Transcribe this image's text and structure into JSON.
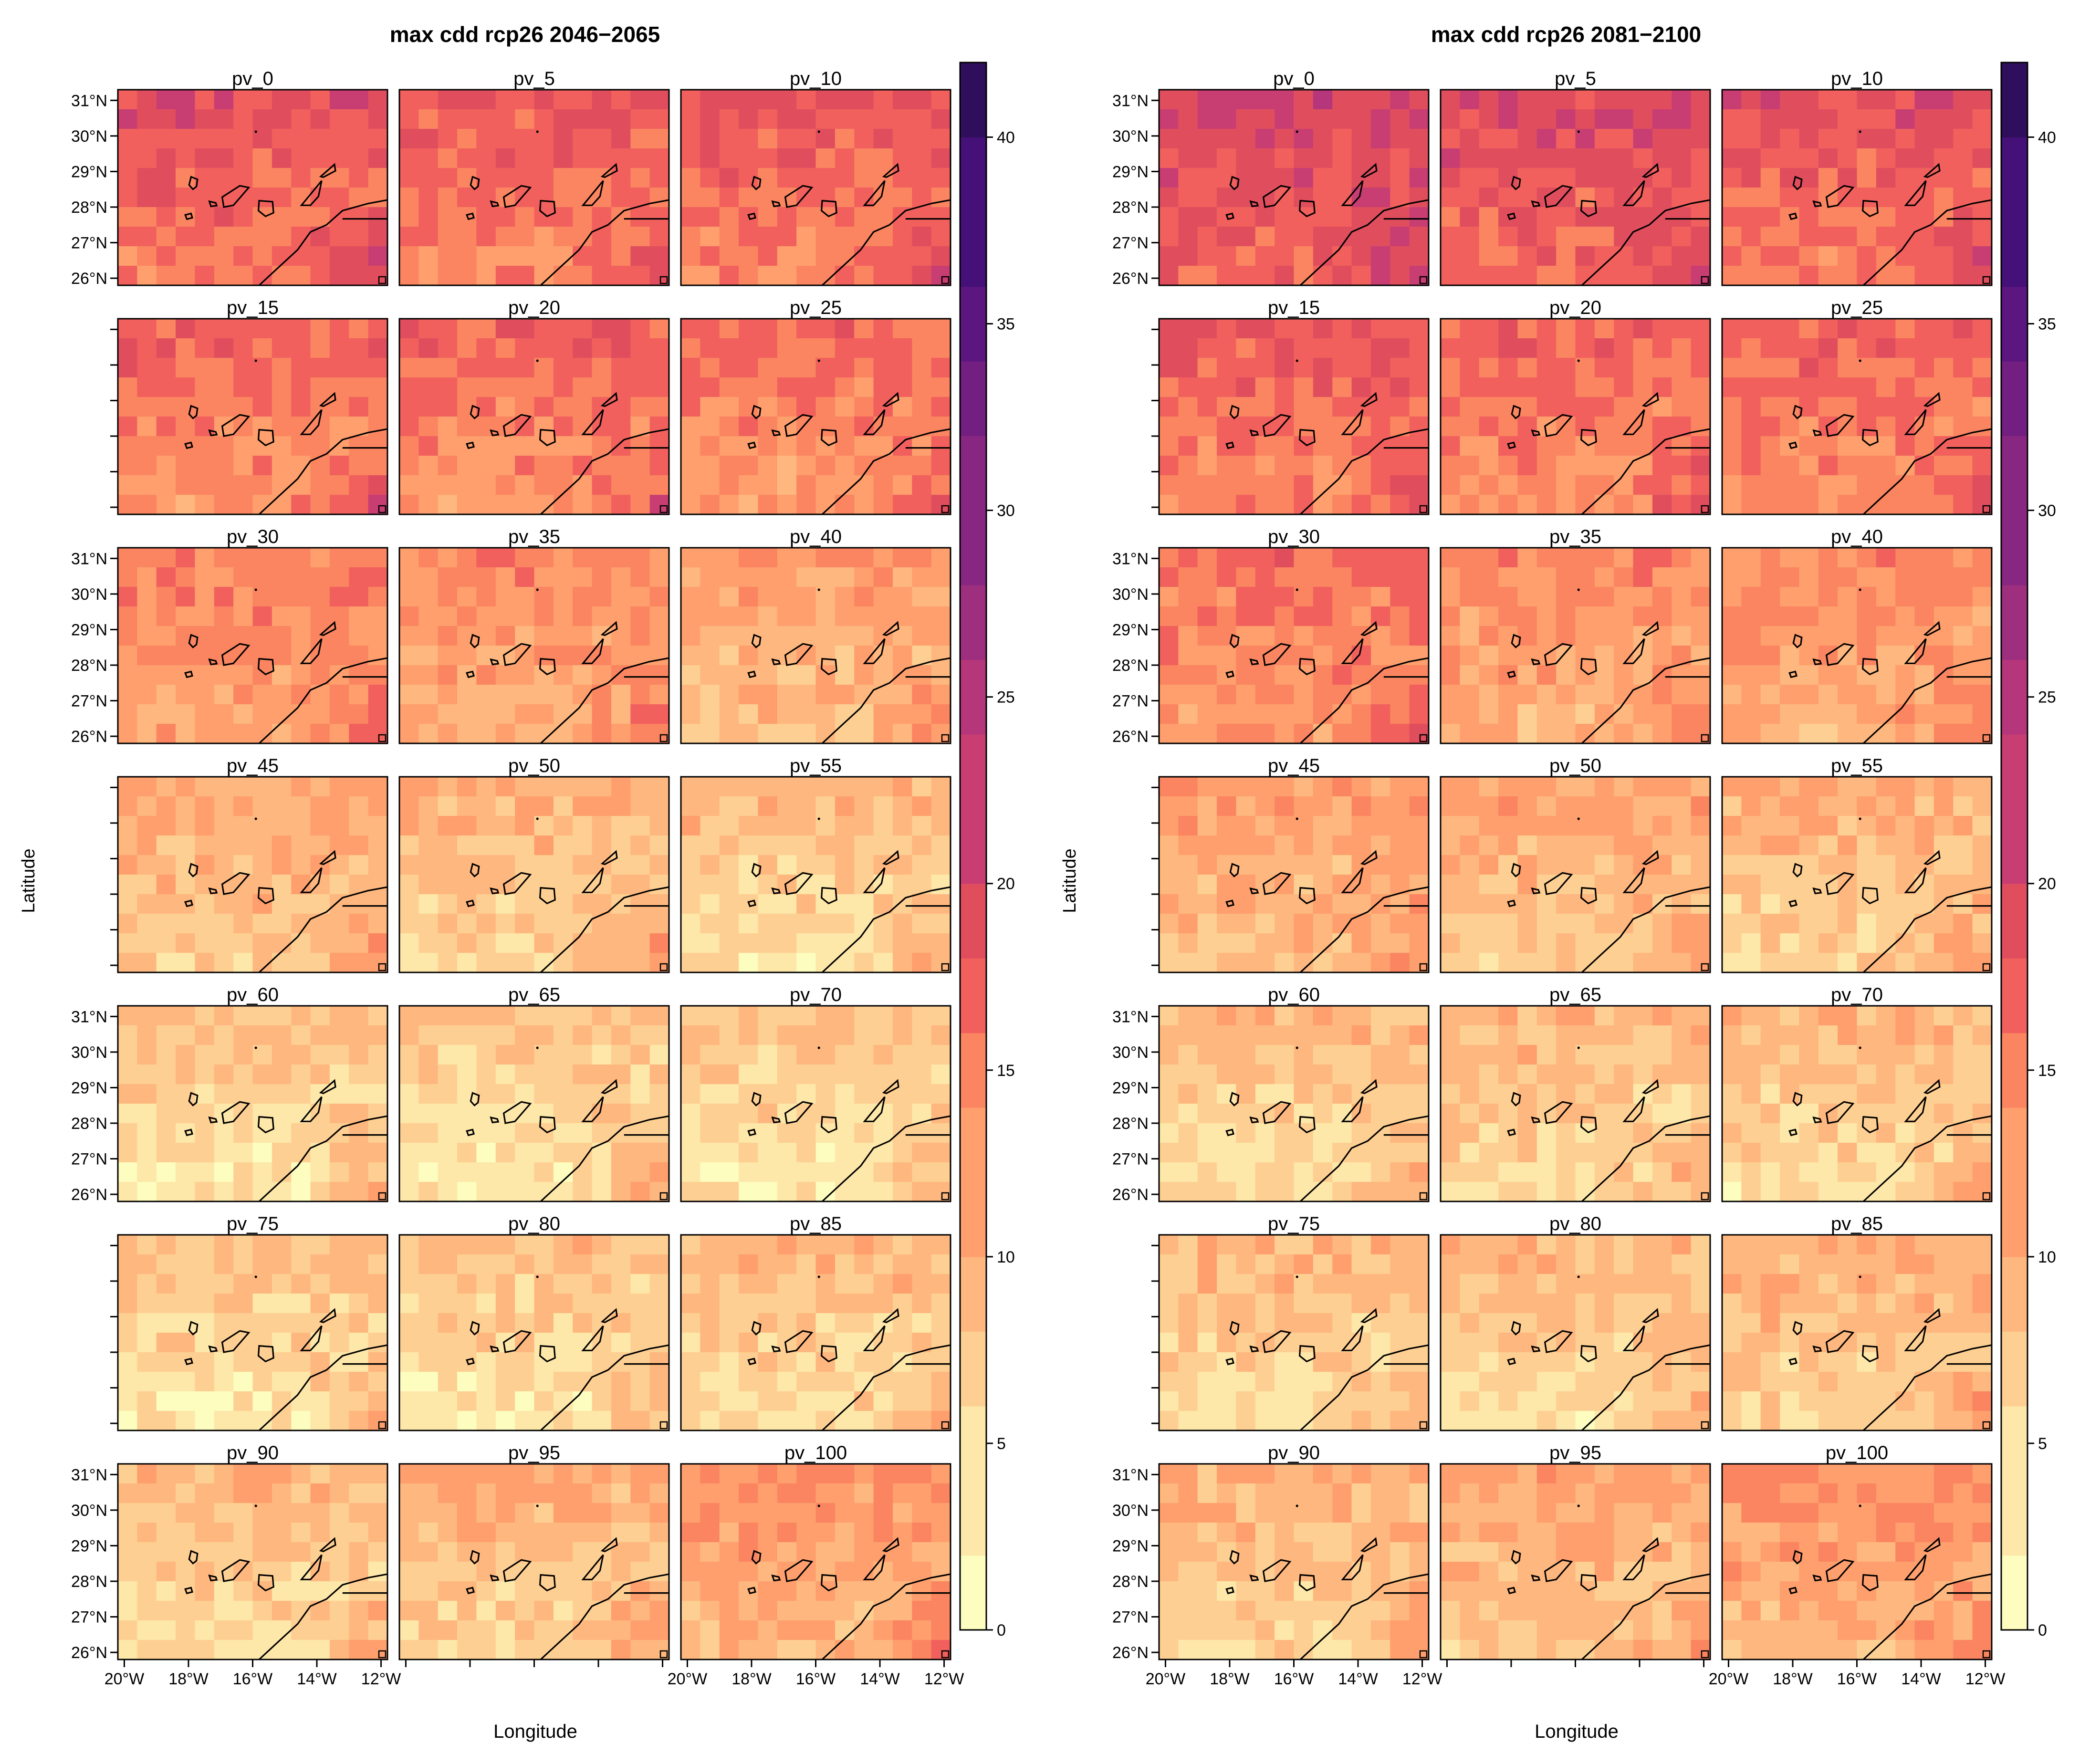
{
  "figures": [
    {
      "title": "max cdd rcp26 2046−2065",
      "side": "left"
    },
    {
      "title": "max cdd rcp26 2081−2100",
      "side": "right"
    }
  ],
  "axes": {
    "xlabel": "Longitude",
    "ylabel": "Latitude",
    "x_ticks": [
      "20°W",
      "18°W",
      "16°W",
      "14°W",
      "12°W"
    ],
    "y_ticks": [
      "26°N",
      "27°N",
      "28°N",
      "29°N",
      "30°N",
      "31°N"
    ]
  },
  "panel_labels": [
    "pv_0",
    "pv_5",
    "pv_10",
    "pv_15",
    "pv_20",
    "pv_25",
    "pv_30",
    "pv_35",
    "pv_40",
    "pv_45",
    "pv_50",
    "pv_55",
    "pv_60",
    "pv_65",
    "pv_70",
    "pv_75",
    "pv_80",
    "pv_85",
    "pv_90",
    "pv_95",
    "pv_100"
  ],
  "colorbar": {
    "ticks": [
      "0",
      "5",
      "10",
      "15",
      "20",
      "25",
      "30",
      "35",
      "40"
    ],
    "min": 0,
    "max": 42,
    "levels": 21,
    "palette": [
      "#fcfdbf",
      "#fde7a9",
      "#fecf92",
      "#feb77e",
      "#fe9f6d",
      "#fa8560",
      "#f1605d",
      "#e04e5e",
      "#c83e73",
      "#b5367a",
      "#9e2f7f",
      "#882781",
      "#721f81",
      "#5c167f",
      "#451077",
      "#2f0f5b"
    ]
  },
  "chart_data": {
    "type": "heatmap",
    "x_range": [
      -20.2,
      -11.8
    ],
    "y_range": [
      25.8,
      31.3
    ],
    "value_range": [
      0,
      42
    ],
    "panels_2046_2065": [
      {
        "label": "pv_0",
        "mean_cdd": 17
      },
      {
        "label": "pv_5",
        "mean_cdd": 16
      },
      {
        "label": "pv_10",
        "mean_cdd": 16
      },
      {
        "label": "pv_15",
        "mean_cdd": 15
      },
      {
        "label": "pv_20",
        "mean_cdd": 15
      },
      {
        "label": "pv_25",
        "mean_cdd": 14
      },
      {
        "label": "pv_30",
        "mean_cdd": 13
      },
      {
        "label": "pv_35",
        "mean_cdd": 12
      },
      {
        "label": "pv_40",
        "mean_cdd": 10
      },
      {
        "label": "pv_45",
        "mean_cdd": 9
      },
      {
        "label": "pv_50",
        "mean_cdd": 8
      },
      {
        "label": "pv_55",
        "mean_cdd": 7
      },
      {
        "label": "pv_60",
        "mean_cdd": 6
      },
      {
        "label": "pv_65",
        "mean_cdd": 6
      },
      {
        "label": "pv_70",
        "mean_cdd": 6
      },
      {
        "label": "pv_75",
        "mean_cdd": 6
      },
      {
        "label": "pv_80",
        "mean_cdd": 6
      },
      {
        "label": "pv_85",
        "mean_cdd": 7
      },
      {
        "label": "pv_90",
        "mean_cdd": 7
      },
      {
        "label": "pv_95",
        "mean_cdd": 8
      },
      {
        "label": "pv_100",
        "mean_cdd": 11
      }
    ],
    "panels_2081_2100": [
      {
        "label": "pv_0",
        "mean_cdd": 19
      },
      {
        "label": "pv_5",
        "mean_cdd": 18
      },
      {
        "label": "pv_10",
        "mean_cdd": 17
      },
      {
        "label": "pv_15",
        "mean_cdd": 16
      },
      {
        "label": "pv_20",
        "mean_cdd": 15
      },
      {
        "label": "pv_25",
        "mean_cdd": 15
      },
      {
        "label": "pv_30",
        "mean_cdd": 14
      },
      {
        "label": "pv_35",
        "mean_cdd": 12
      },
      {
        "label": "pv_40",
        "mean_cdd": 12
      },
      {
        "label": "pv_45",
        "mean_cdd": 10
      },
      {
        "label": "pv_50",
        "mean_cdd": 9
      },
      {
        "label": "pv_55",
        "mean_cdd": 8
      },
      {
        "label": "pv_60",
        "mean_cdd": 7
      },
      {
        "label": "pv_65",
        "mean_cdd": 7
      },
      {
        "label": "pv_70",
        "mean_cdd": 7
      },
      {
        "label": "pv_75",
        "mean_cdd": 7
      },
      {
        "label": "pv_80",
        "mean_cdd": 7
      },
      {
        "label": "pv_85",
        "mean_cdd": 8
      },
      {
        "label": "pv_90",
        "mean_cdd": 8
      },
      {
        "label": "pv_95",
        "mean_cdd": 9
      },
      {
        "label": "pv_100",
        "mean_cdd": 11
      }
    ]
  }
}
